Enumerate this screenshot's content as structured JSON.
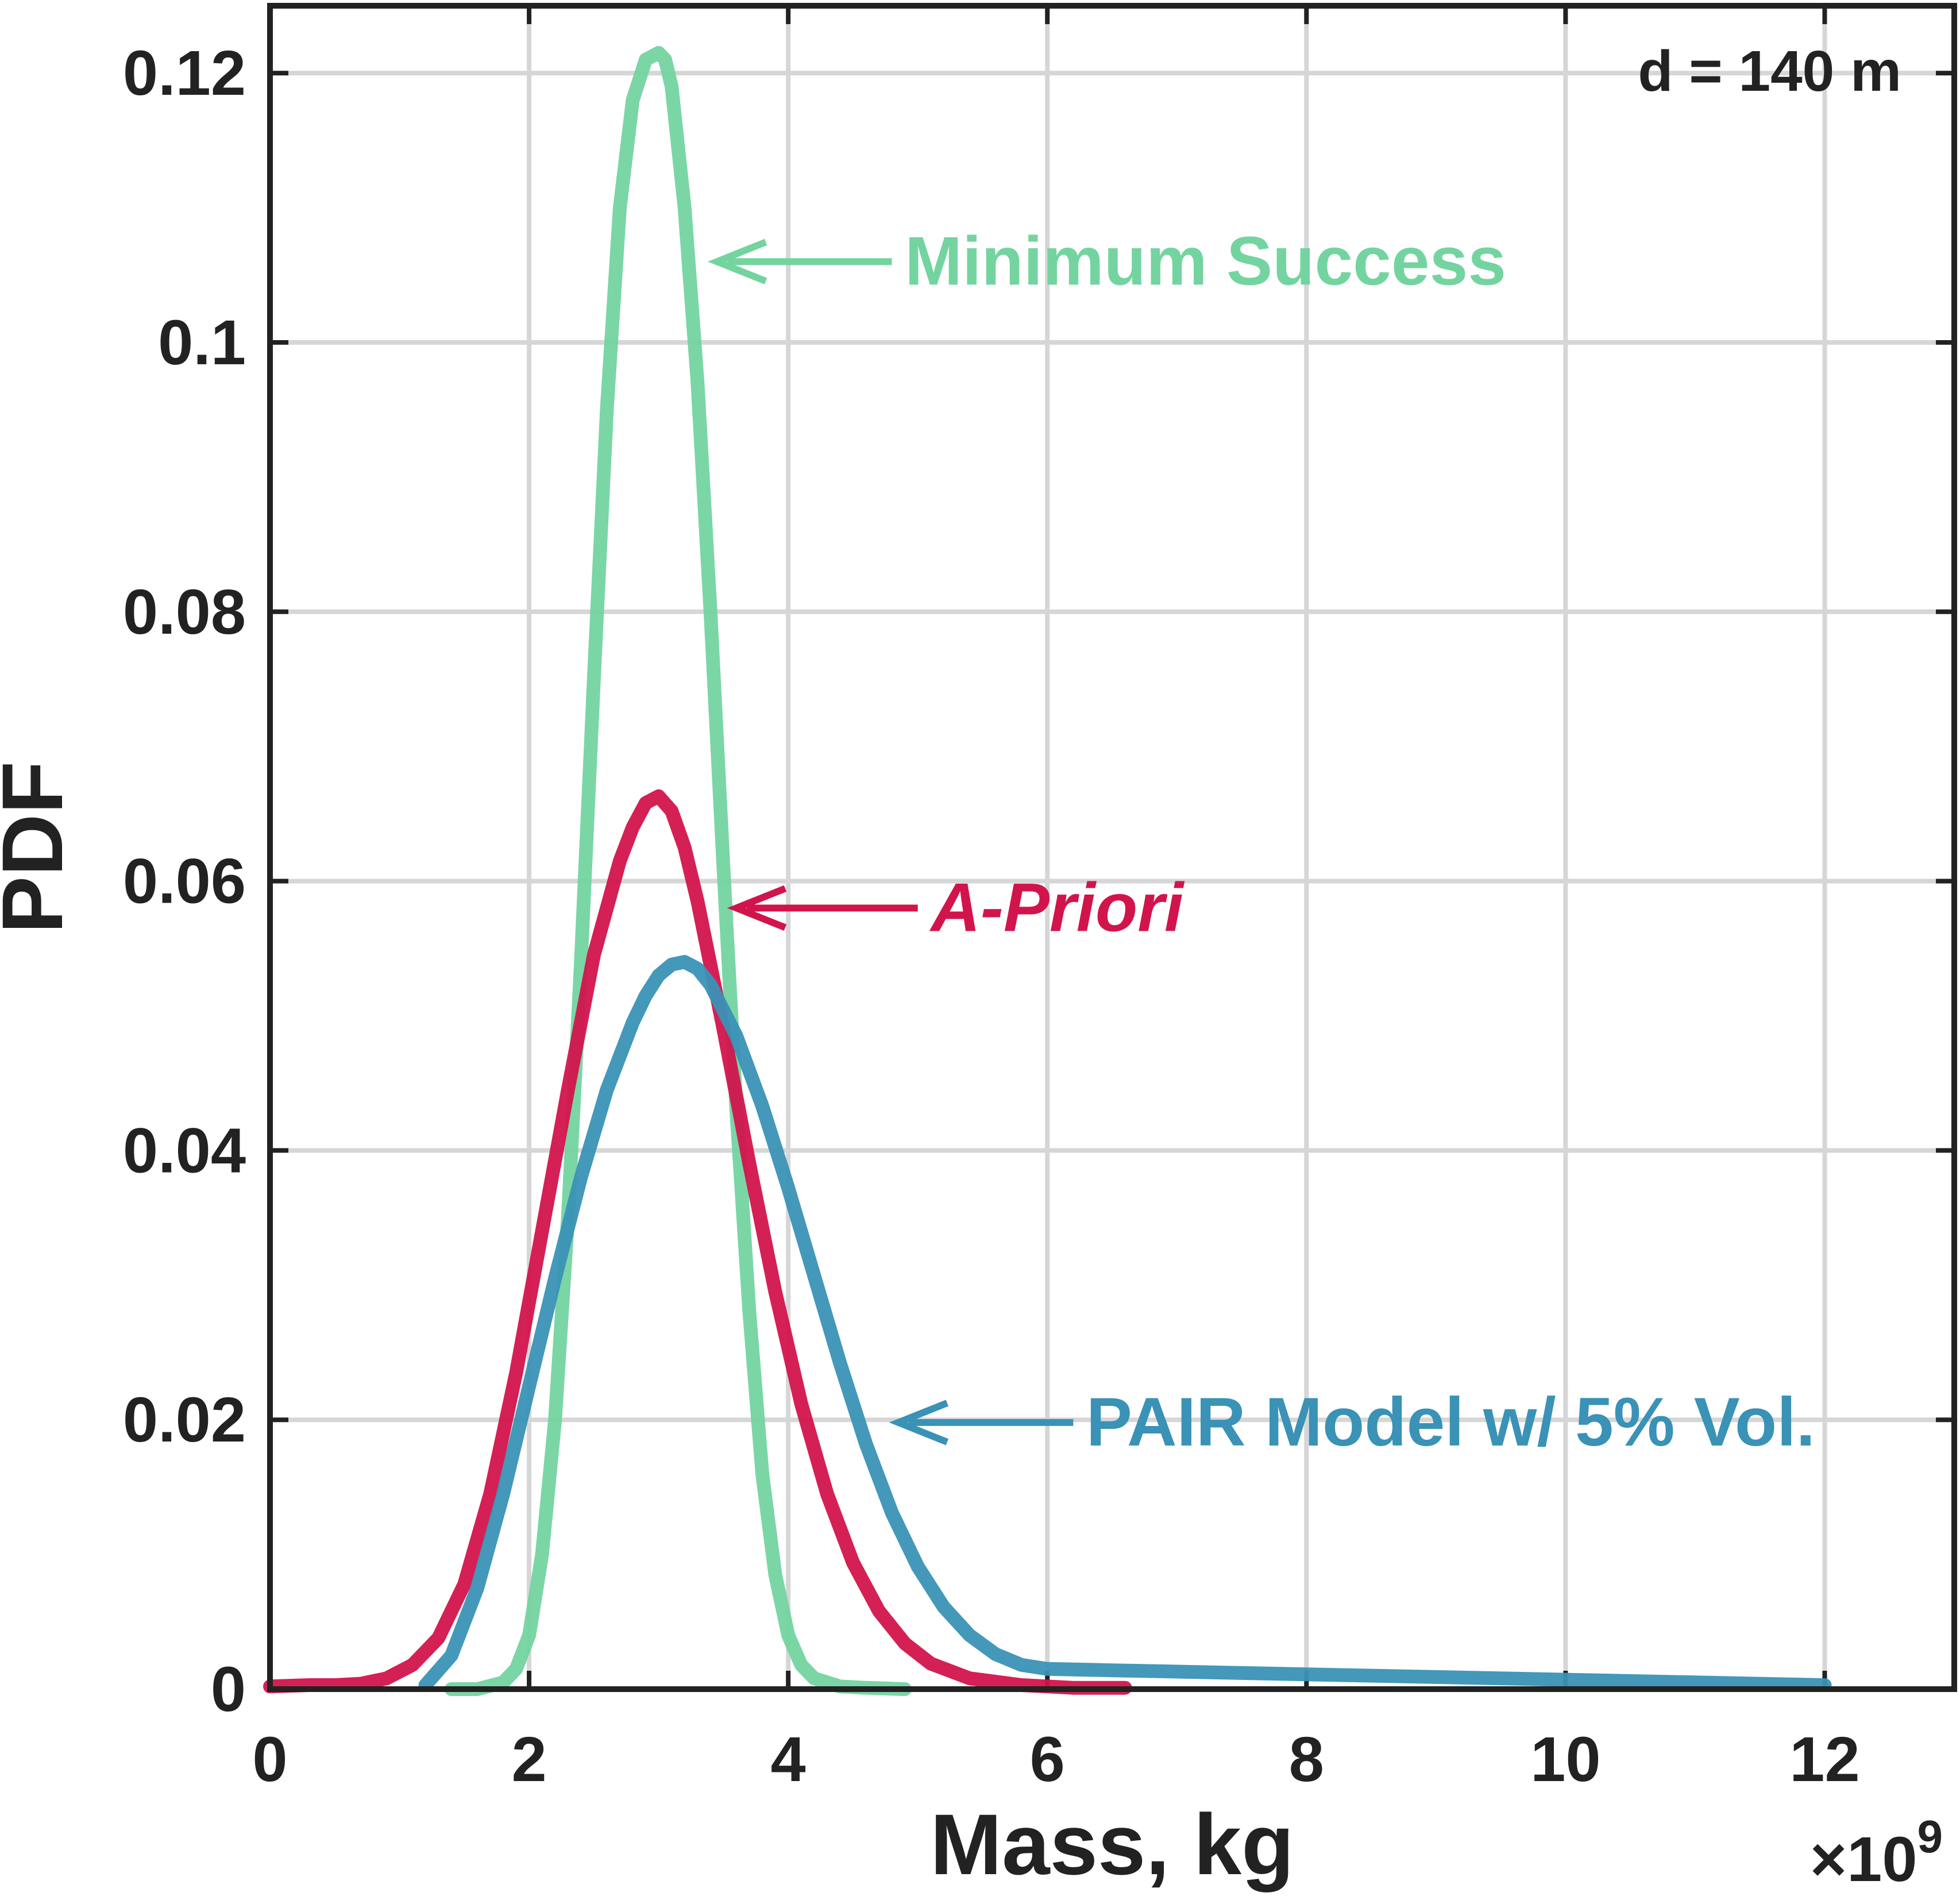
{
  "chart_data": {
    "type": "line",
    "title": "",
    "xlabel": "Mass, kg",
    "ylabel": "PDF",
    "x_exponent": "×10",
    "x_exponent_power": "9",
    "xlim": [
      0,
      13
    ],
    "ylim": [
      0,
      0.125
    ],
    "x_ticks": [
      0,
      2,
      4,
      6,
      8,
      10,
      12
    ],
    "x_tick_labels": [
      "0",
      "2",
      "4",
      "6",
      "8",
      "10",
      "12"
    ],
    "y_ticks": [
      0,
      0.02,
      0.04,
      0.06,
      0.08,
      0.1,
      0.12
    ],
    "y_tick_labels": [
      "0",
      "0.02",
      "0.04",
      "0.06",
      "0.08",
      "0.1",
      "0.12"
    ],
    "grid": true,
    "annotation_corner": "d = 140 m",
    "series": [
      {
        "name": "Minimum Success",
        "label": "Minimum Success",
        "color": "#74d4a0",
        "italic": false,
        "x": [
          1.4,
          1.6,
          1.8,
          1.9,
          2.0,
          2.1,
          2.2,
          2.3,
          2.4,
          2.5,
          2.6,
          2.7,
          2.8,
          2.9,
          3.0,
          3.05,
          3.1,
          3.2,
          3.3,
          3.4,
          3.5,
          3.6,
          3.7,
          3.8,
          3.9,
          4.0,
          4.1,
          4.2,
          4.4,
          4.6,
          4.9
        ],
        "y": [
          0,
          0,
          0.0005,
          0.0015,
          0.004,
          0.01,
          0.02,
          0.035,
          0.054,
          0.075,
          0.095,
          0.11,
          0.118,
          0.121,
          0.1215,
          0.121,
          0.119,
          0.11,
          0.097,
          0.08,
          0.061,
          0.043,
          0.028,
          0.016,
          0.0085,
          0.004,
          0.0018,
          0.0008,
          0.0002,
          0.0001,
          0
        ],
        "arrow_tip": [
          3.45,
          0.106
        ],
        "arrow_tail": [
          4.8,
          0.106
        ],
        "label_anchor": [
          4.9,
          0.106
        ]
      },
      {
        "name": "A-Priori",
        "label": "A-Priori",
        "color": "#d2144c",
        "italic": true,
        "x": [
          0.0,
          0.3,
          0.5,
          0.7,
          0.9,
          1.1,
          1.3,
          1.5,
          1.7,
          1.9,
          2.1,
          2.3,
          2.5,
          2.7,
          2.8,
          2.9,
          3.0,
          3.1,
          3.2,
          3.3,
          3.5,
          3.7,
          3.9,
          4.1,
          4.3,
          4.5,
          4.7,
          4.9,
          5.1,
          5.4,
          5.8,
          6.2,
          6.6
        ],
        "y": [
          0.0002,
          0.0003,
          0.0003,
          0.0004,
          0.0008,
          0.0018,
          0.0038,
          0.0078,
          0.0145,
          0.0235,
          0.034,
          0.0445,
          0.0545,
          0.0615,
          0.064,
          0.0658,
          0.0663,
          0.0652,
          0.0625,
          0.0585,
          0.049,
          0.039,
          0.0295,
          0.0212,
          0.0145,
          0.0094,
          0.0058,
          0.0034,
          0.0019,
          0.0008,
          0.0003,
          0.0001,
          0.0001
        ],
        "arrow_tip": [
          3.6,
          0.058
        ],
        "arrow_tail": [
          5.0,
          0.058
        ],
        "label_anchor": [
          5.1,
          0.058
        ]
      },
      {
        "name": "PAIR Model w/ 5% Vol.",
        "label": "PAIR Model w/ 5% Vol.",
        "color": "#3a92b6",
        "italic": false,
        "x": [
          1.2,
          1.4,
          1.6,
          1.8,
          2.0,
          2.2,
          2.4,
          2.6,
          2.8,
          2.9,
          3.0,
          3.1,
          3.2,
          3.3,
          3.4,
          3.6,
          3.8,
          4.0,
          4.2,
          4.4,
          4.6,
          4.8,
          5.0,
          5.2,
          5.4,
          5.6,
          5.8,
          6.0,
          6.5,
          7.0,
          7.5,
          8.0,
          9.0,
          10.0,
          11.0,
          12.0
        ],
        "y": [
          0.0003,
          0.0025,
          0.0075,
          0.0145,
          0.0225,
          0.0305,
          0.038,
          0.0445,
          0.0495,
          0.0515,
          0.053,
          0.0538,
          0.054,
          0.0535,
          0.0523,
          0.0485,
          0.0433,
          0.0372,
          0.0307,
          0.0242,
          0.0182,
          0.0131,
          0.0091,
          0.0061,
          0.004,
          0.0026,
          0.0018,
          0.0015,
          0.0014,
          0.0013,
          0.0012,
          0.0011,
          0.0009,
          0.0007,
          0.0005,
          0.0003
        ],
        "arrow_tip": [
          4.85,
          0.0198
        ],
        "arrow_tail": [
          6.2,
          0.0198
        ],
        "label_anchor": [
          6.3,
          0.0198
        ]
      }
    ]
  }
}
